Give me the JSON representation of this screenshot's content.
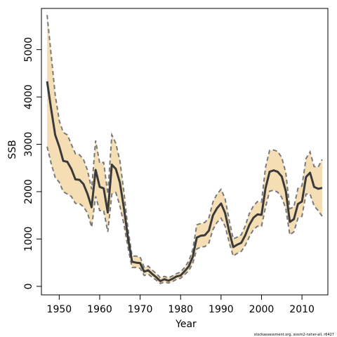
{
  "chart_data": {
    "type": "line",
    "title": "",
    "xlabel": "Year",
    "ylabel": "SSB",
    "xlim": [
      1945.6,
      2016.4
    ],
    "ylim": [
      -180,
      5870
    ],
    "x_ticks": [
      1950,
      1960,
      1970,
      1980,
      1990,
      2000,
      2010
    ],
    "y_ticks": [
      0,
      1000,
      2000,
      3000,
      4000,
      5000
    ],
    "grid": false,
    "legend": "none",
    "colors": {
      "band": "#f5deb3",
      "band_edge": "#7a7a7a",
      "line": "#3a3a3a"
    },
    "x": [
      1947,
      1948,
      1949,
      1950,
      1951,
      1952,
      1953,
      1954,
      1955,
      1956,
      1957,
      1958,
      1959,
      1960,
      1961,
      1962,
      1963,
      1964,
      1965,
      1966,
      1967,
      1968,
      1969,
      1970,
      1971,
      1972,
      1973,
      1974,
      1975,
      1976,
      1977,
      1978,
      1979,
      1980,
      1981,
      1982,
      1983,
      1984,
      1985,
      1986,
      1987,
      1988,
      1989,
      1990,
      1991,
      1992,
      1993,
      1994,
      1995,
      1996,
      1997,
      1998,
      1999,
      2000,
      2001,
      2002,
      2003,
      2004,
      2005,
      2006,
      2007,
      2008,
      2009,
      2010,
      2011,
      2012,
      2013,
      2014,
      2015
    ],
    "series": [
      {
        "role": "estimate",
        "values": [
          4330,
          3750,
          3200,
          2950,
          2650,
          2630,
          2480,
          2260,
          2250,
          2160,
          1950,
          1670,
          2460,
          2100,
          2070,
          1560,
          2570,
          2480,
          2190,
          1640,
          1020,
          520,
          500,
          490,
          310,
          340,
          260,
          190,
          110,
          150,
          120,
          160,
          210,
          230,
          320,
          420,
          620,
          1030,
          1070,
          1080,
          1180,
          1500,
          1650,
          1750,
          1550,
          1160,
          830,
          880,
          920,
          1080,
          1300,
          1450,
          1520,
          1510,
          2080,
          2420,
          2450,
          2420,
          2320,
          2010,
          1360,
          1420,
          1740,
          1790,
          2310,
          2400,
          2100,
          2060,
          2080
        ]
      },
      {
        "role": "upper",
        "values": [
          5730,
          4900,
          4050,
          3500,
          3250,
          3200,
          3000,
          2800,
          2780,
          2680,
          2450,
          2050,
          3080,
          2600,
          2620,
          1950,
          3200,
          3020,
          2650,
          1980,
          1210,
          640,
          640,
          620,
          400,
          430,
          340,
          270,
          180,
          210,
          180,
          220,
          270,
          300,
          400,
          530,
          770,
          1300,
          1330,
          1350,
          1450,
          1780,
          1950,
          2050,
          1850,
          1400,
          1000,
          1040,
          1090,
          1280,
          1540,
          1700,
          1790,
          1780,
          2520,
          2870,
          2880,
          2850,
          2720,
          2400,
          1640,
          1680,
          2070,
          2120,
          2700,
          2840,
          2530,
          2520,
          2680
        ]
      },
      {
        "role": "lower",
        "values": [
          2950,
          2600,
          2300,
          2200,
          2000,
          1950,
          1900,
          1750,
          1750,
          1680,
          1550,
          1250,
          1900,
          1600,
          1600,
          1150,
          1950,
          1980,
          1700,
          1300,
          820,
          400,
          400,
          380,
          230,
          260,
          190,
          130,
          60,
          90,
          70,
          100,
          150,
          170,
          250,
          330,
          480,
          790,
          830,
          840,
          920,
          1200,
          1350,
          1440,
          1270,
          930,
          640,
          700,
          740,
          870,
          1050,
          1200,
          1270,
          1270,
          1680,
          2010,
          2030,
          1990,
          1880,
          1640,
          1090,
          1150,
          1440,
          1480,
          1950,
          1950,
          1700,
          1600,
          1480
        ]
      }
    ]
  },
  "footer": {
    "credit": "stockassessment.org, sissm2-nsher-all, r6427"
  }
}
